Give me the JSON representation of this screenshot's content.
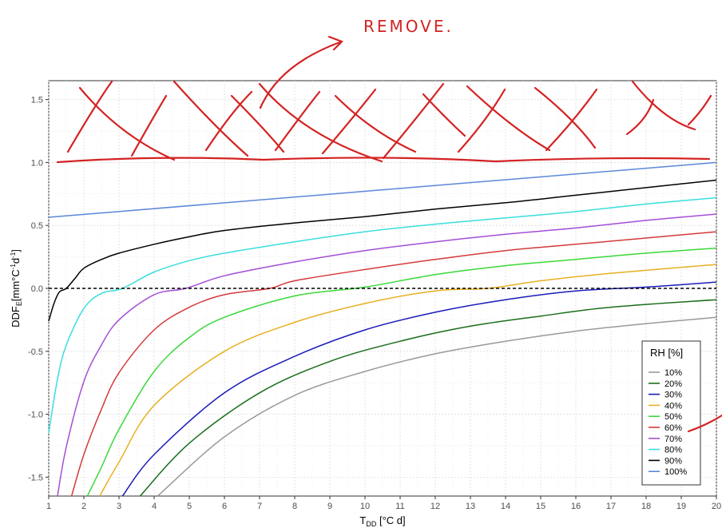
{
  "chart_data": {
    "type": "line",
    "x_label_main": "T",
    "x_label_sub": "DD",
    "x_label_unit": " [°C d]",
    "y_label_main": "DDF",
    "y_label_sub": "E",
    "y_label_unit_a": "[mm°C",
    "y_label_unit_b": "d",
    "y_label_unit_c": "]",
    "y_label_sup": "-1",
    "xlim": [
      1,
      20
    ],
    "ylim": [
      -1.65,
      1.65
    ],
    "x_ticks": [
      1,
      2,
      3,
      4,
      5,
      6,
      7,
      8,
      9,
      10,
      11,
      12,
      13,
      14,
      15,
      16,
      17,
      18,
      19,
      20
    ],
    "x_tick_labels": [
      "1",
      "2",
      "3",
      "4",
      "5",
      "6",
      "7",
      "8",
      "9",
      "10",
      "11",
      "12",
      "13",
      "14",
      "15",
      "16",
      "17",
      "18",
      "19",
      "20"
    ],
    "y_ticks": [
      -1.5,
      -1.0,
      -0.5,
      0.0,
      0.5,
      1.0,
      1.5
    ],
    "y_tick_labels": [
      "-1.5",
      "-1.0",
      "-0.5",
      "0.0",
      "0.5",
      "1.0",
      "1.5"
    ],
    "grid": true,
    "reference_line": {
      "y": 0,
      "style": "dashed"
    },
    "legend": {
      "title": "RH [%]",
      "position": "bottom-right"
    },
    "series": [
      {
        "name": "10%",
        "color": "#999999",
        "points": [
          [
            4.1,
            -1.65
          ],
          [
            6,
            -1.18
          ],
          [
            8,
            -0.85
          ],
          [
            10,
            -0.66
          ],
          [
            12,
            -0.52
          ],
          [
            14,
            -0.42
          ],
          [
            16,
            -0.34
          ],
          [
            18,
            -0.28
          ],
          [
            20,
            -0.23
          ]
        ]
      },
      {
        "name": "20%",
        "color": "#1a6e1a",
        "points": [
          [
            3.6,
            -1.65
          ],
          [
            5,
            -1.23
          ],
          [
            7,
            -0.83
          ],
          [
            9,
            -0.58
          ],
          [
            11,
            -0.42
          ],
          [
            13,
            -0.3
          ],
          [
            15,
            -0.22
          ],
          [
            17,
            -0.15
          ],
          [
            20,
            -0.09
          ]
        ]
      },
      {
        "name": "30%",
        "color": "#1b1bb8",
        "points": [
          [
            3.1,
            -1.65
          ],
          [
            4,
            -1.32
          ],
          [
            6,
            -0.83
          ],
          [
            8,
            -0.54
          ],
          [
            10,
            -0.33
          ],
          [
            12,
            -0.19
          ],
          [
            14,
            -0.09
          ],
          [
            16,
            -0.02
          ],
          [
            18,
            0.01
          ],
          [
            20,
            0.05
          ]
        ]
      },
      {
        "name": "40%",
        "color": "#e6b020",
        "points": [
          [
            2.45,
            -1.65
          ],
          [
            3,
            -1.38
          ],
          [
            4,
            -0.93
          ],
          [
            6,
            -0.5
          ],
          [
            8,
            -0.27
          ],
          [
            10,
            -0.12
          ],
          [
            12,
            -0.02
          ],
          [
            13.5,
            0.0
          ],
          [
            15,
            0.06
          ],
          [
            17,
            0.12
          ],
          [
            20,
            0.19
          ]
        ]
      },
      {
        "name": "50%",
        "color": "#3ad83a",
        "points": [
          [
            2.1,
            -1.65
          ],
          [
            2.5,
            -1.42
          ],
          [
            3,
            -1.12
          ],
          [
            4,
            -0.66
          ],
          [
            5,
            -0.39
          ],
          [
            6,
            -0.23
          ],
          [
            8,
            -0.06
          ],
          [
            10,
            0.01
          ],
          [
            12,
            0.11
          ],
          [
            14,
            0.18
          ],
          [
            16,
            0.23
          ],
          [
            18,
            0.28
          ],
          [
            20,
            0.32
          ]
        ]
      },
      {
        "name": "60%",
        "color": "#d43a3a",
        "points": [
          [
            1.65,
            -1.65
          ],
          [
            2,
            -1.32
          ],
          [
            2.5,
            -0.96
          ],
          [
            3,
            -0.67
          ],
          [
            4,
            -0.33
          ],
          [
            5,
            -0.15
          ],
          [
            6,
            -0.05
          ],
          [
            7.3,
            0.0
          ],
          [
            8,
            0.06
          ],
          [
            10,
            0.15
          ],
          [
            12,
            0.23
          ],
          [
            14,
            0.3
          ],
          [
            16,
            0.35
          ],
          [
            18,
            0.4
          ],
          [
            20,
            0.45
          ]
        ]
      },
      {
        "name": "70%",
        "color": "#a34fd6",
        "points": [
          [
            1.25,
            -1.65
          ],
          [
            1.5,
            -1.26
          ],
          [
            2,
            -0.74
          ],
          [
            2.5,
            -0.45
          ],
          [
            3,
            -0.25
          ],
          [
            4,
            -0.05
          ],
          [
            4.9,
            0.0
          ],
          [
            6,
            0.1
          ],
          [
            8,
            0.21
          ],
          [
            10,
            0.3
          ],
          [
            12,
            0.37
          ],
          [
            14,
            0.43
          ],
          [
            16,
            0.48
          ],
          [
            18,
            0.54
          ],
          [
            20,
            0.59
          ]
        ]
      },
      {
        "name": "80%",
        "color": "#3adede",
        "points": [
          [
            1.0,
            -1.15
          ],
          [
            1.25,
            -0.72
          ],
          [
            1.5,
            -0.45
          ],
          [
            2,
            -0.16
          ],
          [
            2.5,
            -0.04
          ],
          [
            3.1,
            0.0
          ],
          [
            4,
            0.13
          ],
          [
            5,
            0.22
          ],
          [
            6,
            0.28
          ],
          [
            8,
            0.37
          ],
          [
            10,
            0.45
          ],
          [
            12,
            0.51
          ],
          [
            14,
            0.56
          ],
          [
            16,
            0.61
          ],
          [
            18,
            0.67
          ],
          [
            20,
            0.72
          ]
        ]
      },
      {
        "name": "90%",
        "color": "#000000",
        "points": [
          [
            1.0,
            -0.26
          ],
          [
            1.15,
            -0.12
          ],
          [
            1.3,
            -0.03
          ],
          [
            1.5,
            0.0
          ],
          [
            1.75,
            0.08
          ],
          [
            2,
            0.16
          ],
          [
            2.5,
            0.23
          ],
          [
            3,
            0.28
          ],
          [
            4,
            0.35
          ],
          [
            5,
            0.41
          ],
          [
            6,
            0.46
          ],
          [
            8,
            0.52
          ],
          [
            10,
            0.57
          ],
          [
            12,
            0.63
          ],
          [
            14,
            0.68
          ],
          [
            16,
            0.74
          ],
          [
            18,
            0.8
          ],
          [
            20,
            0.86
          ]
        ]
      },
      {
        "name": "100%",
        "color": "#5b87d9",
        "points": [
          [
            1,
            0.565
          ],
          [
            20,
            1.0
          ]
        ]
      }
    ]
  },
  "annotation": {
    "text": "REMOVE.",
    "color": "#d42222"
  }
}
